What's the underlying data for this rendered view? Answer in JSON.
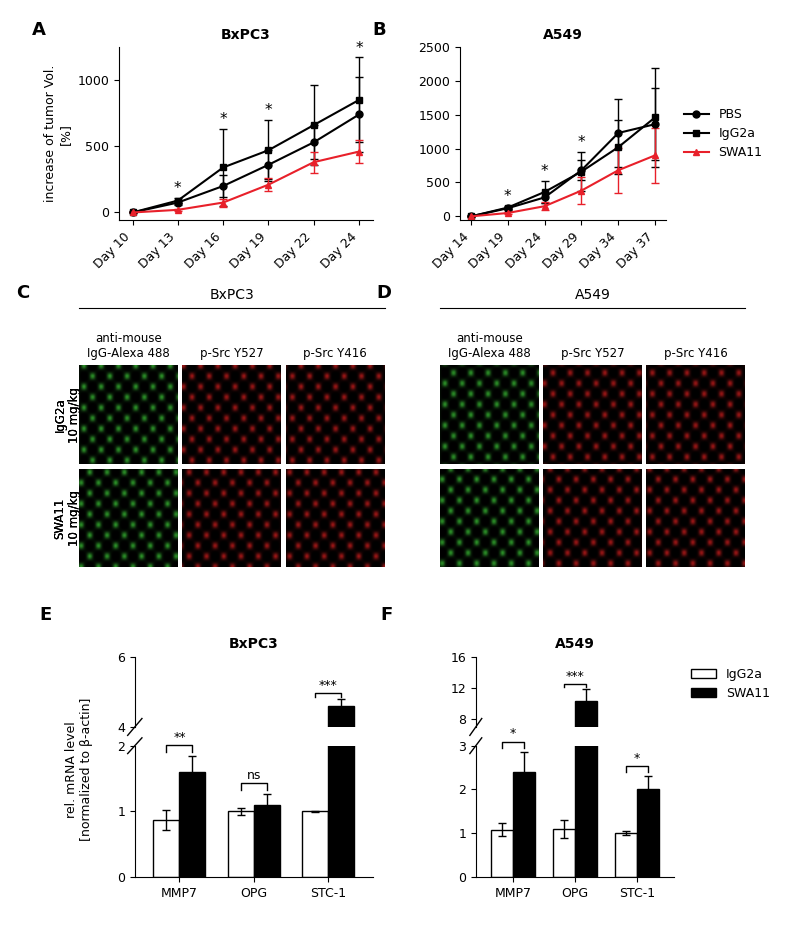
{
  "chart_data": [
    {
      "type": "line",
      "panel": "A",
      "title": "BxPC3",
      "y_label": "increase of tumor Vol.\n[%]",
      "categories": [
        "Day 10",
        "Day 13",
        "Day 16",
        "Day 19",
        "Day 22",
        "Day 24"
      ],
      "ylim": [
        -60,
        1250
      ],
      "yticks": [
        0,
        500,
        1000
      ],
      "series": [
        {
          "name": "PBS",
          "color": "#000000",
          "marker": "o",
          "values": [
            0,
            75,
            200,
            360,
            530,
            740
          ],
          "errors": [
            0,
            20,
            80,
            110,
            130,
            280
          ]
        },
        {
          "name": "IgG2a",
          "color": "#000000",
          "marker": "s",
          "values": [
            0,
            90,
            340,
            470,
            660,
            850
          ],
          "errors": [
            0,
            20,
            290,
            230,
            300,
            320
          ]
        },
        {
          "name": "SWA11",
          "color": "#e8202a",
          "marker": "^",
          "values": [
            0,
            20,
            75,
            210,
            380,
            460
          ],
          "errors": [
            0,
            10,
            30,
            50,
            80,
            90
          ]
        }
      ],
      "significance": [
        null,
        "*",
        "*",
        "*",
        null,
        "*"
      ]
    },
    {
      "type": "line",
      "panel": "B",
      "title": "A549",
      "categories": [
        "Day 14",
        "Day 19",
        "Day 24",
        "Day 29",
        "Day 34",
        "Day 37"
      ],
      "ylim": [
        -60,
        2500
      ],
      "yticks": [
        0,
        500,
        1000,
        1500,
        2000,
        2500
      ],
      "series": [
        {
          "name": "PBS",
          "color": "#000000",
          "marker": "o",
          "values": [
            0,
            120,
            280,
            680,
            1230,
            1360
          ],
          "errors": [
            0,
            20,
            80,
            150,
            500,
            530
          ]
        },
        {
          "name": "IgG2a",
          "color": "#000000",
          "marker": "s",
          "values": [
            0,
            130,
            360,
            660,
            1020,
            1460
          ],
          "errors": [
            0,
            20,
            160,
            290,
            400,
            730
          ]
        },
        {
          "name": "SWA11",
          "color": "#e8202a",
          "marker": "^",
          "values": [
            0,
            50,
            150,
            380,
            680,
            900
          ],
          "errors": [
            0,
            15,
            60,
            200,
            330,
            410
          ]
        }
      ],
      "significance": [
        null,
        "*",
        "*",
        "*",
        null,
        null
      ],
      "legend": "right"
    },
    {
      "type": "image_grid",
      "rows": [
        "IgG2a\n10 mg/kg",
        "SWA11\n10 mg/kg"
      ],
      "groups": [
        {
          "panel": "C",
          "title": "BxPC3",
          "columns": [
            {
              "label": "anti-mouse\nIgG-Alexa 488",
              "color": "#3fd13a"
            },
            {
              "label": "p-Src Y527",
              "color": "#e02020"
            },
            {
              "label": "p-Src Y416",
              "color": "#e02020"
            }
          ]
        },
        {
          "panel": "D",
          "title": "A549",
          "columns": [
            {
              "label": "anti-mouse\nIgG-Alexa 488",
              "color": "#3fd13a"
            },
            {
              "label": "p-Src Y527",
              "color": "#e02020"
            },
            {
              "label": "p-Src Y416",
              "color": "#e02020"
            }
          ]
        }
      ]
    },
    {
      "type": "bar",
      "panel": "E",
      "title": "BxPC3",
      "y_label": "rel. mRNA level\n[normalized to β-actin]",
      "categories": [
        "MMP7",
        "OPG",
        "STC-1"
      ],
      "broken_axis": {
        "lower": {
          "ylim": [
            0,
            2
          ],
          "yticks": [
            0,
            1,
            2
          ]
        },
        "upper": {
          "ylim": [
            4,
            6
          ],
          "yticks": [
            4,
            6
          ]
        }
      },
      "series": [
        {
          "name": "IgG2a",
          "color": "#ffffff",
          "values": [
            0.87,
            1.0,
            1.0
          ],
          "errors": [
            0.15,
            0.05,
            0.01
          ]
        },
        {
          "name": "SWA11",
          "color": "#000000",
          "values": [
            1.6,
            1.1,
            4.6
          ],
          "errors": [
            0.25,
            0.17,
            0.2
          ]
        }
      ],
      "significance": [
        "**",
        "ns",
        "***"
      ]
    },
    {
      "type": "bar",
      "panel": "F",
      "title": "A549",
      "y_label": "rel. mRNA level\n[normalized to β-actin]",
      "categories": [
        "MMP7",
        "OPG",
        "STC-1"
      ],
      "broken_axis": {
        "lower": {
          "ylim": [
            0,
            3
          ],
          "yticks": [
            0,
            1,
            2,
            3
          ]
        },
        "upper": {
          "ylim": [
            7,
            16
          ],
          "yticks": [
            8,
            12,
            16
          ]
        }
      },
      "series": [
        {
          "name": "IgG2a",
          "color": "#ffffff",
          "values": [
            1.08,
            1.1,
            1.0
          ],
          "errors": [
            0.15,
            0.2,
            0.05
          ]
        },
        {
          "name": "SWA11",
          "color": "#000000",
          "values": [
            2.4,
            10.3,
            2.0
          ],
          "errors": [
            0.45,
            1.5,
            0.3
          ]
        }
      ],
      "significance": [
        "*",
        "***",
        "*"
      ],
      "legend": "right"
    }
  ]
}
